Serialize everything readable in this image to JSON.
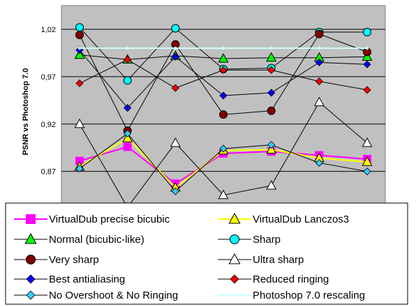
{
  "chart_data": {
    "type": "line",
    "title": "",
    "xlabel": "",
    "ylabel": "PSNR vs Photoshop 7.0",
    "ylim": [
      0.83,
      1.045
    ],
    "yticks": [
      "0,87",
      "0,92",
      "0,97",
      "1,02"
    ],
    "ytick_values": [
      0.87,
      0.92,
      0.97,
      1.02
    ],
    "grid": true,
    "legend_position": "bottom",
    "plot_background": "#c0c0c0",
    "x": [
      1,
      2,
      3,
      4,
      5,
      6,
      7
    ],
    "series": [
      {
        "name": "VirtualDub precise bicubic",
        "color": "#ff00ff",
        "marker": "square",
        "marker_fill": "#ff00ff",
        "values": [
          0.881,
          0.896,
          0.857,
          0.889,
          0.891,
          0.887,
          0.883
        ]
      },
      {
        "name": "VirtualDub Lanczos3",
        "color": "#ffff00",
        "marker": "triangle",
        "marker_fill": "#ffff00",
        "values": [
          0.875,
          0.905,
          0.853,
          0.892,
          0.893,
          0.884,
          0.88
        ]
      },
      {
        "name": "Normal (bicubic-like)",
        "color": "#000000",
        "marker": "triangle",
        "marker_fill": "#00ff00",
        "values": [
          0.993,
          0.988,
          0.992,
          0.989,
          0.99,
          0.99,
          0.991
        ]
      },
      {
        "name": "Sharp",
        "color": "#000000",
        "marker": "circle",
        "marker_fill": "#00ffff",
        "values": [
          1.022,
          0.966,
          1.021,
          0.978,
          0.979,
          1.017,
          1.017
        ]
      },
      {
        "name": "Very sharp",
        "color": "#000000",
        "marker": "circle",
        "marker_fill": "#800000",
        "values": [
          1.014,
          0.913,
          1.004,
          0.93,
          0.934,
          1.015,
          0.996
        ]
      },
      {
        "name": "Ultra sharp",
        "color": "#000000",
        "marker": "triangle",
        "marker_fill": "#ffffff",
        "values": [
          0.92,
          0.832,
          0.9,
          0.845,
          0.855,
          0.943,
          0.9
        ]
      },
      {
        "name": "Best antialiasing",
        "color": "#000000",
        "marker": "diamond",
        "marker_fill": "#0000ff",
        "values": [
          0.998,
          0.937,
          0.991,
          0.95,
          0.953,
          0.985,
          0.983
        ]
      },
      {
        "name": "Reduced ringing",
        "color": "#000000",
        "marker": "diamond",
        "marker_fill": "#ff0000",
        "values": [
          0.963,
          0.988,
          0.958,
          0.977,
          0.977,
          0.965,
          0.956
        ]
      },
      {
        "name": "No Overshoot & No Ringing",
        "color": "#000000",
        "marker": "diamond",
        "marker_fill": "#33ccff",
        "values": [
          0.873,
          0.91,
          0.849,
          0.894,
          0.898,
          0.879,
          0.87
        ]
      },
      {
        "name": "Photoshop 7.0 rescaling",
        "color": "#ccffff",
        "marker": "dot",
        "marker_fill": "#ccffff",
        "values": [
          1.0,
          1.0,
          1.0,
          1.0,
          1.0,
          1.0,
          1.0
        ]
      }
    ]
  }
}
